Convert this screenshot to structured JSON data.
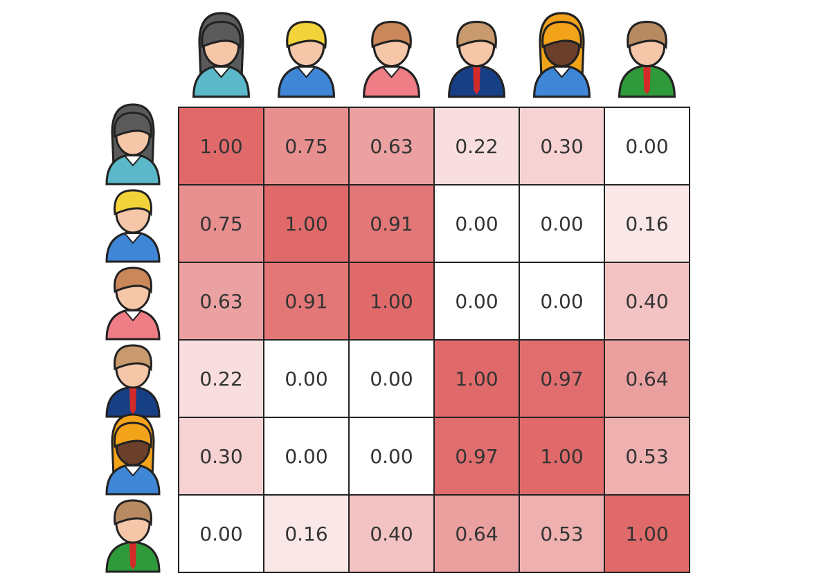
{
  "chart_data": {
    "type": "heatmap",
    "color": "#e06a6a",
    "values": [
      [
        1.0,
        0.75,
        0.63,
        0.22,
        0.3,
        0.0
      ],
      [
        0.75,
        1.0,
        0.91,
        0.0,
        0.0,
        0.16
      ],
      [
        0.63,
        0.91,
        1.0,
        0.0,
        0.0,
        0.4
      ],
      [
        0.22,
        0.0,
        0.0,
        1.0,
        0.97,
        0.64
      ],
      [
        0.3,
        0.0,
        0.0,
        0.97,
        1.0,
        0.53
      ],
      [
        0.0,
        0.16,
        0.4,
        0.64,
        0.53,
        1.0
      ]
    ],
    "value_labels": [
      [
        "1.00",
        "0.75",
        "0.63",
        "0.22",
        "0.30",
        "0.00"
      ],
      [
        "0.75",
        "1.00",
        "0.91",
        "0.00",
        "0.00",
        "0.16"
      ],
      [
        "0.63",
        "0.91",
        "1.00",
        "0.00",
        "0.00",
        "0.40"
      ],
      [
        "0.22",
        "0.00",
        "0.00",
        "1.00",
        "0.97",
        "0.64"
      ],
      [
        "0.30",
        "0.00",
        "0.00",
        "0.97",
        "1.00",
        "0.53"
      ],
      [
        "0.00",
        "0.16",
        "0.40",
        "0.64",
        "0.53",
        "1.00"
      ]
    ]
  }
}
